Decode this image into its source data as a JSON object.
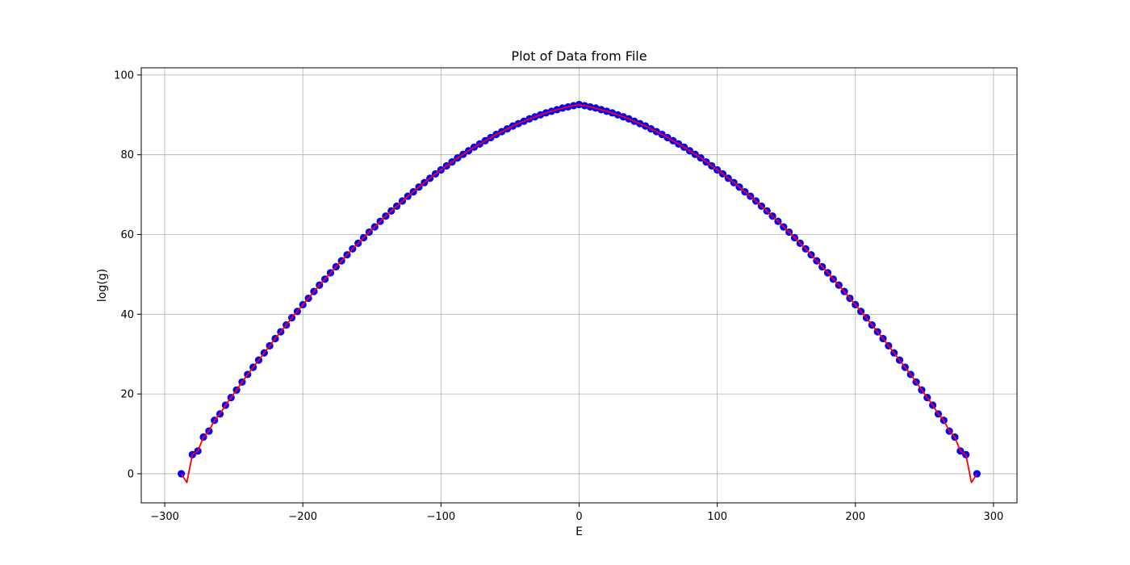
{
  "chart_data": {
    "type": "scatter",
    "title": "Plot of Data from File",
    "xlabel": "E",
    "ylabel": "log(g)",
    "xlim": [
      -317,
      317
    ],
    "ylim": [
      -7.3,
      101.8
    ],
    "xticks": [
      -300,
      -200,
      -100,
      0,
      100,
      200,
      300
    ],
    "yticks": [
      0,
      20,
      40,
      60,
      80,
      100
    ],
    "grid": true,
    "colors": {
      "points": "#0000ff",
      "line": "#ff0000",
      "grid": "#b0b0b0"
    },
    "series": [
      {
        "style": "markers",
        "x": [
          -288,
          -280,
          -276,
          -272,
          -268,
          -264,
          -260,
          -256,
          -252,
          -248,
          -244,
          -240,
          -236,
          -232,
          -228,
          -224,
          -220,
          -216,
          -212,
          -208,
          -204,
          -200,
          -196,
          -192,
          -188,
          -184,
          -180,
          -176,
          -172,
          -168,
          -164,
          -160,
          -156,
          -152,
          -148,
          -144,
          -140,
          -136,
          -132,
          -128,
          -124,
          -120,
          -116,
          -112,
          -108,
          -104,
          -100,
          -96,
          -92,
          -88,
          -84,
          -80,
          -76,
          -72,
          -68,
          -64,
          -60,
          -56,
          -52,
          -48,
          -44,
          -40,
          -36,
          -32,
          -28,
          -24,
          -20,
          -16,
          -12,
          -8,
          -4,
          0,
          4,
          8,
          12,
          16,
          20,
          24,
          28,
          32,
          36,
          40,
          44,
          48,
          52,
          56,
          60,
          64,
          68,
          72,
          76,
          80,
          84,
          88,
          92,
          96,
          100,
          104,
          108,
          112,
          116,
          120,
          124,
          128,
          132,
          136,
          140,
          144,
          148,
          152,
          156,
          160,
          164,
          168,
          172,
          176,
          180,
          184,
          188,
          192,
          196,
          200,
          204,
          208,
          212,
          216,
          220,
          224,
          228,
          232,
          236,
          240,
          244,
          248,
          252,
          256,
          260,
          264,
          268,
          272,
          276,
          280,
          288
        ],
        "y": [
          0,
          4.8,
          5.7,
          9.2,
          10.7,
          13.4,
          15.0,
          17.2,
          19.1,
          21.0,
          23.0,
          24.9,
          26.7,
          28.5,
          30.3,
          32.1,
          33.9,
          35.6,
          37.3,
          39.1,
          40.7,
          42.4,
          44.0,
          45.7,
          47.3,
          48.8,
          50.4,
          51.9,
          53.4,
          54.9,
          56.4,
          57.8,
          59.2,
          60.6,
          61.9,
          63.3,
          64.6,
          65.9,
          67.1,
          68.4,
          69.6,
          70.7,
          71.9,
          73.0,
          74.1,
          75.2,
          76.2,
          77.2,
          78.2,
          79.2,
          80.1,
          81.0,
          81.9,
          82.7,
          83.5,
          84.3,
          85.1,
          85.8,
          86.5,
          87.2,
          87.8,
          88.4,
          89.0,
          89.5,
          90.0,
          90.5,
          90.9,
          91.3,
          91.7,
          92.0,
          92.3,
          92.6,
          92.3,
          92.0,
          91.7,
          91.3,
          90.9,
          90.5,
          90.0,
          89.5,
          89.0,
          88.4,
          87.8,
          87.2,
          86.5,
          85.8,
          85.1,
          84.3,
          83.5,
          82.7,
          81.9,
          81.0,
          80.1,
          79.2,
          78.2,
          77.2,
          76.2,
          75.2,
          74.1,
          73.0,
          71.9,
          70.7,
          69.6,
          68.4,
          67.1,
          65.9,
          64.6,
          63.3,
          61.9,
          60.6,
          59.2,
          57.8,
          56.4,
          54.9,
          53.4,
          51.9,
          50.4,
          48.8,
          47.3,
          45.7,
          44.0,
          42.4,
          40.7,
          39.1,
          37.3,
          35.6,
          33.9,
          32.1,
          30.3,
          28.5,
          26.7,
          24.9,
          23.0,
          21.0,
          19.1,
          17.2,
          15.0,
          13.4,
          10.7,
          9.2,
          5.7,
          4.8,
          0
        ]
      },
      {
        "style": "line",
        "x": [
          -288,
          -284,
          -280,
          -276,
          -272,
          -268,
          -264,
          -260,
          -256,
          -252,
          -248,
          -244,
          -240,
          -236,
          -232,
          -228,
          -224,
          -220,
          -216,
          -212,
          -208,
          -204,
          -200,
          -196,
          -192,
          -188,
          -184,
          -180,
          -176,
          -172,
          -168,
          -164,
          -160,
          -156,
          -152,
          -148,
          -144,
          -140,
          -136,
          -132,
          -128,
          -124,
          -120,
          -116,
          -112,
          -108,
          -104,
          -100,
          -96,
          -92,
          -88,
          -84,
          -80,
          -76,
          -72,
          -68,
          -64,
          -60,
          -56,
          -52,
          -48,
          -44,
          -40,
          -36,
          -32,
          -28,
          -24,
          -20,
          -16,
          -12,
          -8,
          -4,
          0,
          4,
          8,
          12,
          16,
          20,
          24,
          28,
          32,
          36,
          40,
          44,
          48,
          52,
          56,
          60,
          64,
          68,
          72,
          76,
          80,
          84,
          88,
          92,
          96,
          100,
          104,
          108,
          112,
          116,
          120,
          124,
          128,
          132,
          136,
          140,
          144,
          148,
          152,
          156,
          160,
          164,
          168,
          172,
          176,
          180,
          184,
          188,
          192,
          196,
          200,
          204,
          208,
          212,
          216,
          220,
          224,
          228,
          232,
          236,
          240,
          244,
          248,
          252,
          256,
          260,
          264,
          268,
          272,
          276,
          280,
          284,
          288
        ],
        "y": [
          0,
          -2.2,
          4.8,
          5.7,
          9.2,
          10.7,
          13.4,
          15.0,
          17.2,
          19.1,
          21.0,
          23.0,
          24.9,
          26.7,
          28.5,
          30.3,
          32.1,
          33.9,
          35.6,
          37.3,
          39.1,
          40.7,
          42.4,
          44.0,
          45.7,
          47.3,
          48.8,
          50.4,
          51.9,
          53.4,
          54.9,
          56.4,
          57.8,
          59.2,
          60.6,
          61.9,
          63.3,
          64.6,
          65.9,
          67.1,
          68.4,
          69.6,
          70.7,
          71.9,
          73.0,
          74.1,
          75.2,
          76.2,
          77.2,
          78.2,
          79.2,
          80.1,
          81.0,
          81.9,
          82.7,
          83.5,
          84.3,
          85.1,
          85.8,
          86.5,
          87.2,
          87.8,
          88.4,
          89.0,
          89.5,
          90.0,
          90.5,
          90.9,
          91.3,
          91.7,
          92.0,
          92.3,
          92.6,
          92.3,
          92.0,
          91.7,
          91.3,
          90.9,
          90.5,
          90.0,
          89.5,
          89.0,
          88.4,
          87.8,
          87.2,
          86.5,
          85.8,
          85.1,
          84.3,
          83.5,
          82.7,
          81.9,
          81.0,
          80.1,
          79.2,
          78.2,
          77.2,
          76.2,
          75.2,
          74.1,
          73.0,
          71.9,
          70.7,
          69.6,
          68.4,
          67.1,
          65.9,
          64.6,
          63.3,
          61.9,
          60.6,
          59.2,
          57.8,
          56.4,
          54.9,
          53.4,
          51.9,
          50.4,
          48.8,
          47.3,
          45.7,
          44.0,
          42.4,
          40.7,
          39.1,
          37.3,
          35.6,
          33.9,
          32.1,
          30.3,
          28.5,
          26.7,
          24.9,
          23.0,
          21.0,
          19.1,
          17.2,
          15.0,
          13.4,
          10.7,
          9.2,
          5.7,
          4.8,
          -2.2,
          0
        ]
      }
    ]
  }
}
